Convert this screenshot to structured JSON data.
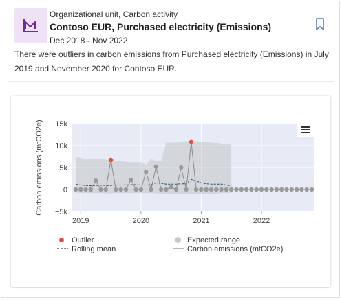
{
  "insight": {
    "category": "Organizational unit, Carbon activity",
    "title": "Contoso EUR, Purchased electricity (Emissions)",
    "date_range": "Dec 2018 - Nov 2022",
    "description": "There were outliers in carbon emissions from Purchased electricity (Emissions) in July 2019 and November 2020 for Contoso EUR.",
    "icon": "line-chart-icon",
    "bookmark_icon": "bookmark-icon",
    "accent_color": "#6f2a9e",
    "icon_bg_color": "#efe2f7"
  },
  "chart_data": {
    "type": "line",
    "ylabel": "Carbon emissions (mtCO2e)",
    "y_ticks": [
      "15k",
      "10k",
      "5k",
      "0",
      "−5k"
    ],
    "y_tick_values": [
      15000,
      10000,
      5000,
      0,
      -5000
    ],
    "ylim": [
      -5000,
      15000
    ],
    "x_ticks": [
      "2019",
      "2020",
      "2021",
      "2022"
    ],
    "x_tick_values": [
      "2019-01",
      "2020-01",
      "2021-01",
      "2022-01"
    ],
    "xlim": [
      "2018-12",
      "2022-11"
    ],
    "grid": true,
    "legend_position": "bottom",
    "colors": {
      "outlier": "#e0513f",
      "expected_range": "#bdbdbd",
      "rolling_mean": "#33476b",
      "emissions": "#8a8a8a",
      "plot_bg": "#e6ebf5"
    },
    "legend": [
      {
        "key": "outlier",
        "label": "Outlier"
      },
      {
        "key": "expected_range",
        "label": "Expected range"
      },
      {
        "key": "rolling_mean",
        "label": "Rolling mean"
      },
      {
        "key": "emissions",
        "label": "Carbon emissions (mtCO2e)"
      }
    ],
    "months": [
      "2018-12",
      "2019-01",
      "2019-02",
      "2019-03",
      "2019-04",
      "2019-05",
      "2019-06",
      "2019-07",
      "2019-08",
      "2019-09",
      "2019-10",
      "2019-11",
      "2019-12",
      "2020-01",
      "2020-02",
      "2020-03",
      "2020-04",
      "2020-05",
      "2020-06",
      "2020-07",
      "2020-08",
      "2020-09",
      "2020-10",
      "2020-11",
      "2020-12",
      "2021-01",
      "2021-02",
      "2021-03",
      "2021-04",
      "2021-05",
      "2021-06",
      "2021-07",
      "2021-08",
      "2021-09",
      "2021-10",
      "2021-11",
      "2021-12",
      "2022-01",
      "2022-02",
      "2022-03",
      "2022-04",
      "2022-05",
      "2022-06",
      "2022-07",
      "2022-08",
      "2022-09",
      "2022-10",
      "2022-11"
    ],
    "series": [
      {
        "name": "Carbon emissions (mtCO2e)",
        "values": [
          0,
          0,
          0,
          0,
          2000,
          0,
          0,
          6700,
          0,
          0,
          0,
          2200,
          0,
          0,
          4000,
          0,
          5200,
          0,
          0,
          500,
          0,
          5000,
          0,
          10800,
          0,
          0,
          0,
          0,
          0,
          0,
          0,
          0,
          0,
          0,
          0,
          0,
          0,
          0,
          0,
          0,
          0,
          0,
          0,
          0,
          0,
          0,
          0,
          0
        ]
      },
      {
        "name": "Rolling mean",
        "values": [
          1200,
          1000,
          900,
          850,
          900,
          950,
          900,
          900,
          1000,
          1000,
          1050,
          1100,
          1100,
          1000,
          1000,
          1100,
          1500,
          1400,
          1200,
          1200,
          1200,
          1300,
          1300,
          2300,
          1900,
          1500,
          1300,
          1200,
          1200,
          1200,
          1000,
          800
        ]
      }
    ],
    "expected_range": {
      "upper": [
        7500,
        7200,
        6800,
        7000,
        6800,
        7000,
        6800,
        6600,
        6400,
        6400,
        6300,
        6200,
        6200,
        6200,
        5600,
        7000,
        6400,
        6400,
        10700,
        10700,
        10700,
        10800,
        10800,
        10800,
        10800,
        10800,
        10800,
        10700,
        10600,
        10300,
        10300,
        10300
      ],
      "lower": [
        -800,
        -800,
        -800,
        -800,
        -800,
        -800,
        -900,
        -900,
        -800,
        -800,
        -800,
        -800,
        -800,
        -800,
        -800,
        -800,
        -900,
        -900,
        -1000,
        -1000,
        -1000,
        -1000,
        -1000,
        -1000,
        -1000,
        -1000,
        -1000,
        -1000,
        -1000,
        -800,
        -800,
        -800
      ]
    },
    "outliers": [
      {
        "month": "2019-07",
        "value": 6700
      },
      {
        "month": "2020-11",
        "value": 10800
      }
    ]
  }
}
